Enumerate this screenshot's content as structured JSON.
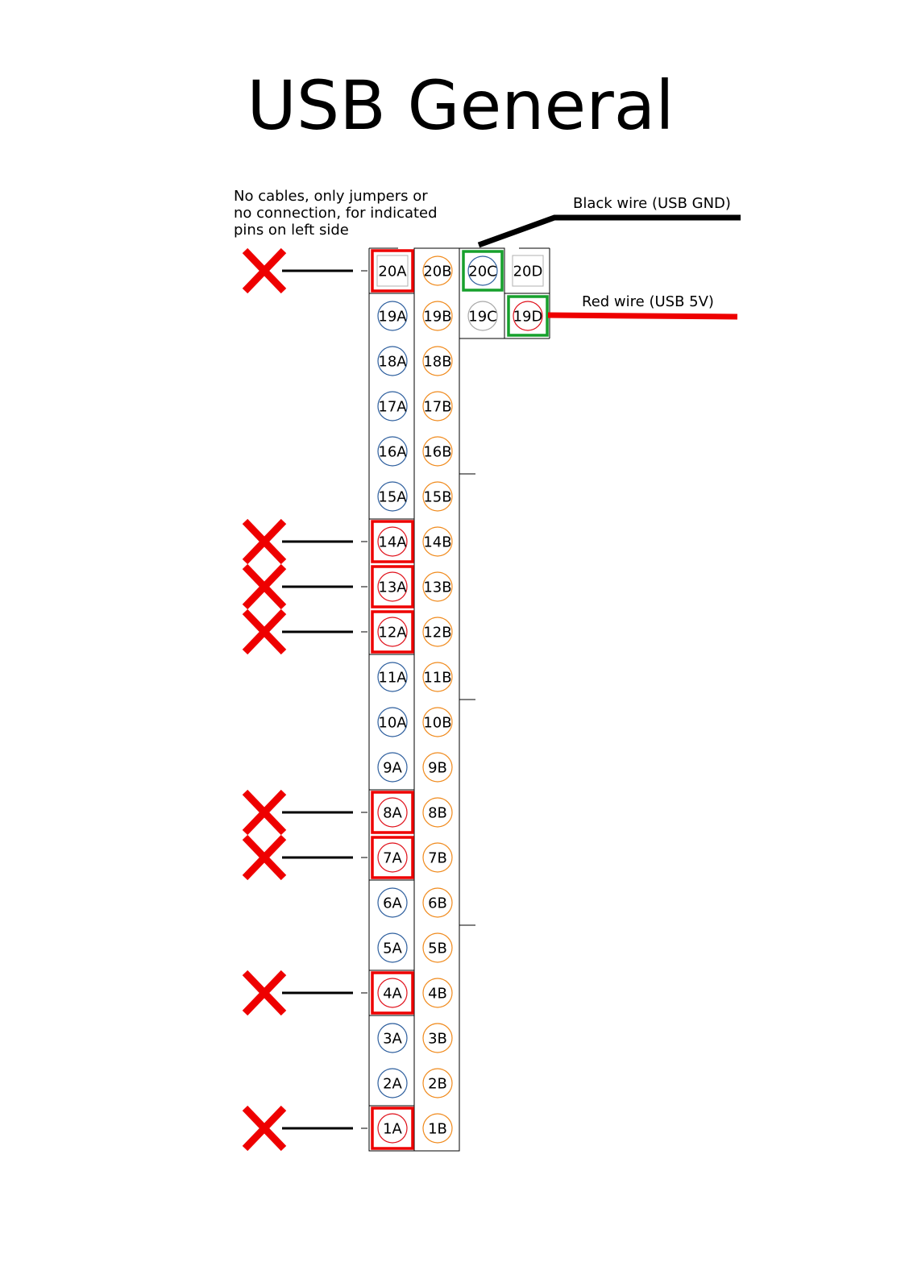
{
  "title": "USB General",
  "annotations": {
    "note": "No cables, only jumpers or\nno connection, for indicated\npins on left side",
    "black_wire": "Black wire (USB GND)",
    "red_wire": "Red wire (USB 5V)"
  },
  "colors": {
    "col_a_ring": "#2e5f9e",
    "col_b_ring": "#f08a1c",
    "gray_ring": "#a8a8a8",
    "red_ring": "#e0101a",
    "highlight_red": "#ee0000",
    "highlight_green": "#16a02c",
    "black_wire": "#000000",
    "red_wire": "#ee0000"
  },
  "pins": {
    "a": [
      "20A",
      "19A",
      "18A",
      "17A",
      "16A",
      "15A",
      "14A",
      "13A",
      "12A",
      "11A",
      "10A",
      "9A",
      "8A",
      "7A",
      "6A",
      "5A",
      "4A",
      "3A",
      "2A",
      "1A"
    ],
    "b": [
      "20B",
      "19B",
      "18B",
      "17B",
      "16B",
      "15B",
      "14B",
      "13B",
      "12B",
      "11B",
      "10B",
      "9B",
      "8B",
      "7B",
      "6B",
      "5B",
      "4B",
      "3B",
      "2B",
      "1B"
    ],
    "c": [
      "20C",
      "19C"
    ],
    "d": [
      "20D",
      "19D"
    ]
  },
  "no_connection_pins": [
    "20A",
    "14A",
    "13A",
    "12A",
    "8A",
    "7A",
    "4A",
    "1A"
  ],
  "gnd_pin": "20C",
  "vcc_pin": "19D"
}
